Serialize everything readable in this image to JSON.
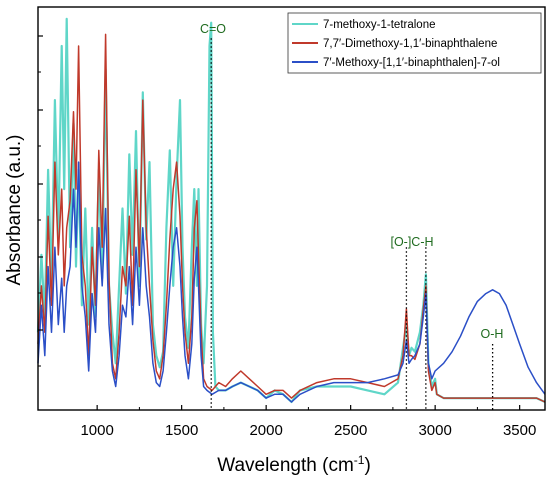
{
  "chart_data": {
    "type": "line",
    "xlabel": "Wavelength (cm",
    "xlabel_sup": "-1",
    "xlabel_close": ")",
    "ylabel": "Absorbance (a.u.)",
    "xlim": [
      650,
      3650
    ],
    "ylim": [
      0,
      1
    ],
    "x_ticks": [
      1000,
      1500,
      2000,
      2500,
      3000,
      3500
    ],
    "y_ticks_visible": false,
    "grid": false,
    "legend_position": "top-right",
    "annotation_color": "#1f6b1f",
    "annotations": [
      {
        "label": "C=O",
        "x": 1675,
        "y_top": 0.94
      },
      {
        "label": "[O-]C-H",
        "x": 2830,
        "y_top": 0.4
      },
      {
        "label": "",
        "x": 2945,
        "y_top": 0.4
      },
      {
        "label": "O-H",
        "x": 3340,
        "y_top": 0.15
      }
    ],
    "annotation_labels": {
      "co": "C=O",
      "och": "[O-]C-H",
      "oh": "O-H"
    },
    "series": [
      {
        "name": "7-methoxy-1-tetralone",
        "color": "#5fd6c8",
        "points": [
          [
            650,
            0.18
          ],
          [
            670,
            0.38
          ],
          [
            690,
            0.22
          ],
          [
            710,
            0.6
          ],
          [
            730,
            0.3
          ],
          [
            750,
            0.78
          ],
          [
            770,
            0.42
          ],
          [
            790,
            0.92
          ],
          [
            805,
            0.55
          ],
          [
            820,
            0.99
          ],
          [
            840,
            0.4
          ],
          [
            860,
            0.72
          ],
          [
            875,
            0.35
          ],
          [
            890,
            0.6
          ],
          [
            910,
            0.25
          ],
          [
            930,
            0.5
          ],
          [
            950,
            0.2
          ],
          [
            970,
            0.45
          ],
          [
            990,
            0.22
          ],
          [
            1010,
            0.6
          ],
          [
            1030,
            0.32
          ],
          [
            1050,
            0.86
          ],
          [
            1070,
            0.3
          ],
          [
            1090,
            0.18
          ],
          [
            1110,
            0.1
          ],
          [
            1130,
            0.3
          ],
          [
            1150,
            0.5
          ],
          [
            1170,
            0.28
          ],
          [
            1190,
            0.64
          ],
          [
            1210,
            0.38
          ],
          [
            1230,
            0.7
          ],
          [
            1250,
            0.3
          ],
          [
            1270,
            0.8
          ],
          [
            1290,
            0.42
          ],
          [
            1310,
            0.62
          ],
          [
            1330,
            0.2
          ],
          [
            1350,
            0.12
          ],
          [
            1370,
            0.09
          ],
          [
            1390,
            0.13
          ],
          [
            1410,
            0.45
          ],
          [
            1430,
            0.65
          ],
          [
            1450,
            0.3
          ],
          [
            1470,
            0.58
          ],
          [
            1490,
            0.78
          ],
          [
            1505,
            0.4
          ],
          [
            1520,
            0.22
          ],
          [
            1540,
            0.14
          ],
          [
            1560,
            0.4
          ],
          [
            1575,
            0.55
          ],
          [
            1590,
            0.3
          ],
          [
            1600,
            0.55
          ],
          [
            1615,
            0.2
          ],
          [
            1630,
            0.1
          ],
          [
            1650,
            0.3
          ],
          [
            1665,
            0.92
          ],
          [
            1675,
            0.98
          ],
          [
            1685,
            0.18
          ],
          [
            1700,
            0.04
          ],
          [
            1720,
            0.03
          ],
          [
            1760,
            0.03
          ],
          [
            1800,
            0.04
          ],
          [
            1850,
            0.05
          ],
          [
            1900,
            0.04
          ],
          [
            1950,
            0.03
          ],
          [
            2000,
            0.01
          ],
          [
            2050,
            0.03
          ],
          [
            2100,
            0.02
          ],
          [
            2150,
            0.0
          ],
          [
            2200,
            0.03
          ],
          [
            2300,
            0.04
          ],
          [
            2400,
            0.04
          ],
          [
            2500,
            0.04
          ],
          [
            2600,
            0.03
          ],
          [
            2700,
            0.02
          ],
          [
            2780,
            0.05
          ],
          [
            2810,
            0.14
          ],
          [
            2830,
            0.2
          ],
          [
            2845,
            0.12
          ],
          [
            2860,
            0.14
          ],
          [
            2880,
            0.13
          ],
          [
            2910,
            0.18
          ],
          [
            2930,
            0.25
          ],
          [
            2945,
            0.33
          ],
          [
            2960,
            0.1
          ],
          [
            2980,
            0.04
          ],
          [
            3000,
            0.06
          ],
          [
            3010,
            0.02
          ],
          [
            3050,
            0.01
          ],
          [
            3100,
            0.01
          ],
          [
            3200,
            0.01
          ],
          [
            3300,
            0.01
          ],
          [
            3400,
            0.01
          ],
          [
            3500,
            0.01
          ],
          [
            3600,
            0.01
          ],
          [
            3650,
            0.0
          ]
        ]
      },
      {
        "name": "7,7′-Dimethoxy-1,1′-binaphthalene",
        "color": "#c0392b",
        "points": [
          [
            650,
            0.15
          ],
          [
            670,
            0.3
          ],
          [
            690,
            0.18
          ],
          [
            710,
            0.48
          ],
          [
            730,
            0.25
          ],
          [
            750,
            0.62
          ],
          [
            770,
            0.38
          ],
          [
            790,
            0.55
          ],
          [
            805,
            0.3
          ],
          [
            820,
            0.45
          ],
          [
            840,
            0.52
          ],
          [
            860,
            0.75
          ],
          [
            875,
            0.55
          ],
          [
            890,
            0.92
          ],
          [
            910,
            0.38
          ],
          [
            930,
            0.3
          ],
          [
            950,
            0.12
          ],
          [
            970,
            0.4
          ],
          [
            990,
            0.25
          ],
          [
            1010,
            0.65
          ],
          [
            1030,
            0.4
          ],
          [
            1050,
            0.95
          ],
          [
            1070,
            0.32
          ],
          [
            1090,
            0.1
          ],
          [
            1110,
            0.06
          ],
          [
            1130,
            0.18
          ],
          [
            1150,
            0.35
          ],
          [
            1170,
            0.3
          ],
          [
            1190,
            0.48
          ],
          [
            1210,
            0.25
          ],
          [
            1230,
            0.6
          ],
          [
            1250,
            0.35
          ],
          [
            1270,
            0.78
          ],
          [
            1290,
            0.45
          ],
          [
            1310,
            0.3
          ],
          [
            1330,
            0.16
          ],
          [
            1350,
            0.08
          ],
          [
            1370,
            0.06
          ],
          [
            1390,
            0.12
          ],
          [
            1410,
            0.25
          ],
          [
            1430,
            0.42
          ],
          [
            1450,
            0.55
          ],
          [
            1470,
            0.62
          ],
          [
            1490,
            0.48
          ],
          [
            1505,
            0.3
          ],
          [
            1520,
            0.18
          ],
          [
            1540,
            0.1
          ],
          [
            1560,
            0.22
          ],
          [
            1575,
            0.45
          ],
          [
            1590,
            0.52
          ],
          [
            1600,
            0.38
          ],
          [
            1615,
            0.18
          ],
          [
            1630,
            0.06
          ],
          [
            1650,
            0.04
          ],
          [
            1680,
            0.03
          ],
          [
            1720,
            0.05
          ],
          [
            1760,
            0.04
          ],
          [
            1800,
            0.06
          ],
          [
            1850,
            0.08
          ],
          [
            1900,
            0.06
          ],
          [
            1950,
            0.04
          ],
          [
            2000,
            0.02
          ],
          [
            2050,
            0.03
          ],
          [
            2100,
            0.03
          ],
          [
            2150,
            0.01
          ],
          [
            2200,
            0.03
          ],
          [
            2300,
            0.05
          ],
          [
            2400,
            0.06
          ],
          [
            2500,
            0.06
          ],
          [
            2600,
            0.05
          ],
          [
            2700,
            0.04
          ],
          [
            2780,
            0.06
          ],
          [
            2810,
            0.12
          ],
          [
            2830,
            0.24
          ],
          [
            2845,
            0.12
          ],
          [
            2860,
            0.12
          ],
          [
            2880,
            0.11
          ],
          [
            2910,
            0.15
          ],
          [
            2930,
            0.24
          ],
          [
            2945,
            0.3
          ],
          [
            2960,
            0.08
          ],
          [
            2980,
            0.03
          ],
          [
            3000,
            0.05
          ],
          [
            3010,
            0.02
          ],
          [
            3050,
            0.01
          ],
          [
            3100,
            0.01
          ],
          [
            3200,
            0.01
          ],
          [
            3300,
            0.01
          ],
          [
            3400,
            0.01
          ],
          [
            3500,
            0.01
          ],
          [
            3600,
            0.01
          ],
          [
            3650,
            0.0
          ]
        ]
      },
      {
        "name": "7′-Methoxy-[1,1′-binaphthalen]-7-ol",
        "color": "#2b4fc7",
        "points": [
          [
            650,
            0.1
          ],
          [
            670,
            0.25
          ],
          [
            690,
            0.12
          ],
          [
            710,
            0.35
          ],
          [
            730,
            0.18
          ],
          [
            750,
            0.4
          ],
          [
            770,
            0.2
          ],
          [
            790,
            0.32
          ],
          [
            805,
            0.18
          ],
          [
            820,
            0.3
          ],
          [
            840,
            0.35
          ],
          [
            860,
            0.55
          ],
          [
            875,
            0.4
          ],
          [
            890,
            0.62
          ],
          [
            910,
            0.3
          ],
          [
            930,
            0.22
          ],
          [
            950,
            0.08
          ],
          [
            970,
            0.28
          ],
          [
            990,
            0.18
          ],
          [
            1010,
            0.45
          ],
          [
            1030,
            0.3
          ],
          [
            1050,
            0.5
          ],
          [
            1070,
            0.2
          ],
          [
            1090,
            0.08
          ],
          [
            1110,
            0.04
          ],
          [
            1130,
            0.12
          ],
          [
            1150,
            0.25
          ],
          [
            1170,
            0.22
          ],
          [
            1190,
            0.35
          ],
          [
            1210,
            0.2
          ],
          [
            1230,
            0.4
          ],
          [
            1250,
            0.25
          ],
          [
            1270,
            0.45
          ],
          [
            1290,
            0.3
          ],
          [
            1310,
            0.22
          ],
          [
            1330,
            0.1
          ],
          [
            1350,
            0.05
          ],
          [
            1370,
            0.04
          ],
          [
            1390,
            0.08
          ],
          [
            1410,
            0.18
          ],
          [
            1430,
            0.3
          ],
          [
            1450,
            0.4
          ],
          [
            1470,
            0.45
          ],
          [
            1490,
            0.35
          ],
          [
            1505,
            0.22
          ],
          [
            1520,
            0.12
          ],
          [
            1540,
            0.06
          ],
          [
            1560,
            0.15
          ],
          [
            1575,
            0.32
          ],
          [
            1590,
            0.4
          ],
          [
            1600,
            0.3
          ],
          [
            1615,
            0.12
          ],
          [
            1630,
            0.04
          ],
          [
            1650,
            0.03
          ],
          [
            1680,
            0.02
          ],
          [
            1720,
            0.03
          ],
          [
            1760,
            0.03
          ],
          [
            1800,
            0.04
          ],
          [
            1850,
            0.05
          ],
          [
            1900,
            0.04
          ],
          [
            1950,
            0.03
          ],
          [
            2000,
            0.01
          ],
          [
            2050,
            0.02
          ],
          [
            2100,
            0.02
          ],
          [
            2150,
            0.0
          ],
          [
            2200,
            0.02
          ],
          [
            2300,
            0.04
          ],
          [
            2400,
            0.05
          ],
          [
            2500,
            0.05
          ],
          [
            2600,
            0.05
          ],
          [
            2700,
            0.06
          ],
          [
            2780,
            0.07
          ],
          [
            2810,
            0.1
          ],
          [
            2830,
            0.16
          ],
          [
            2845,
            0.1
          ],
          [
            2860,
            0.11
          ],
          [
            2880,
            0.12
          ],
          [
            2910,
            0.15
          ],
          [
            2930,
            0.22
          ],
          [
            2945,
            0.28
          ],
          [
            2960,
            0.1
          ],
          [
            2980,
            0.06
          ],
          [
            3000,
            0.08
          ],
          [
            3050,
            0.1
          ],
          [
            3100,
            0.13
          ],
          [
            3150,
            0.17
          ],
          [
            3200,
            0.22
          ],
          [
            3250,
            0.26
          ],
          [
            3300,
            0.28
          ],
          [
            3340,
            0.29
          ],
          [
            3380,
            0.28
          ],
          [
            3420,
            0.25
          ],
          [
            3460,
            0.2
          ],
          [
            3500,
            0.15
          ],
          [
            3550,
            0.09
          ],
          [
            3600,
            0.05
          ],
          [
            3650,
            0.02
          ]
        ]
      }
    ]
  }
}
